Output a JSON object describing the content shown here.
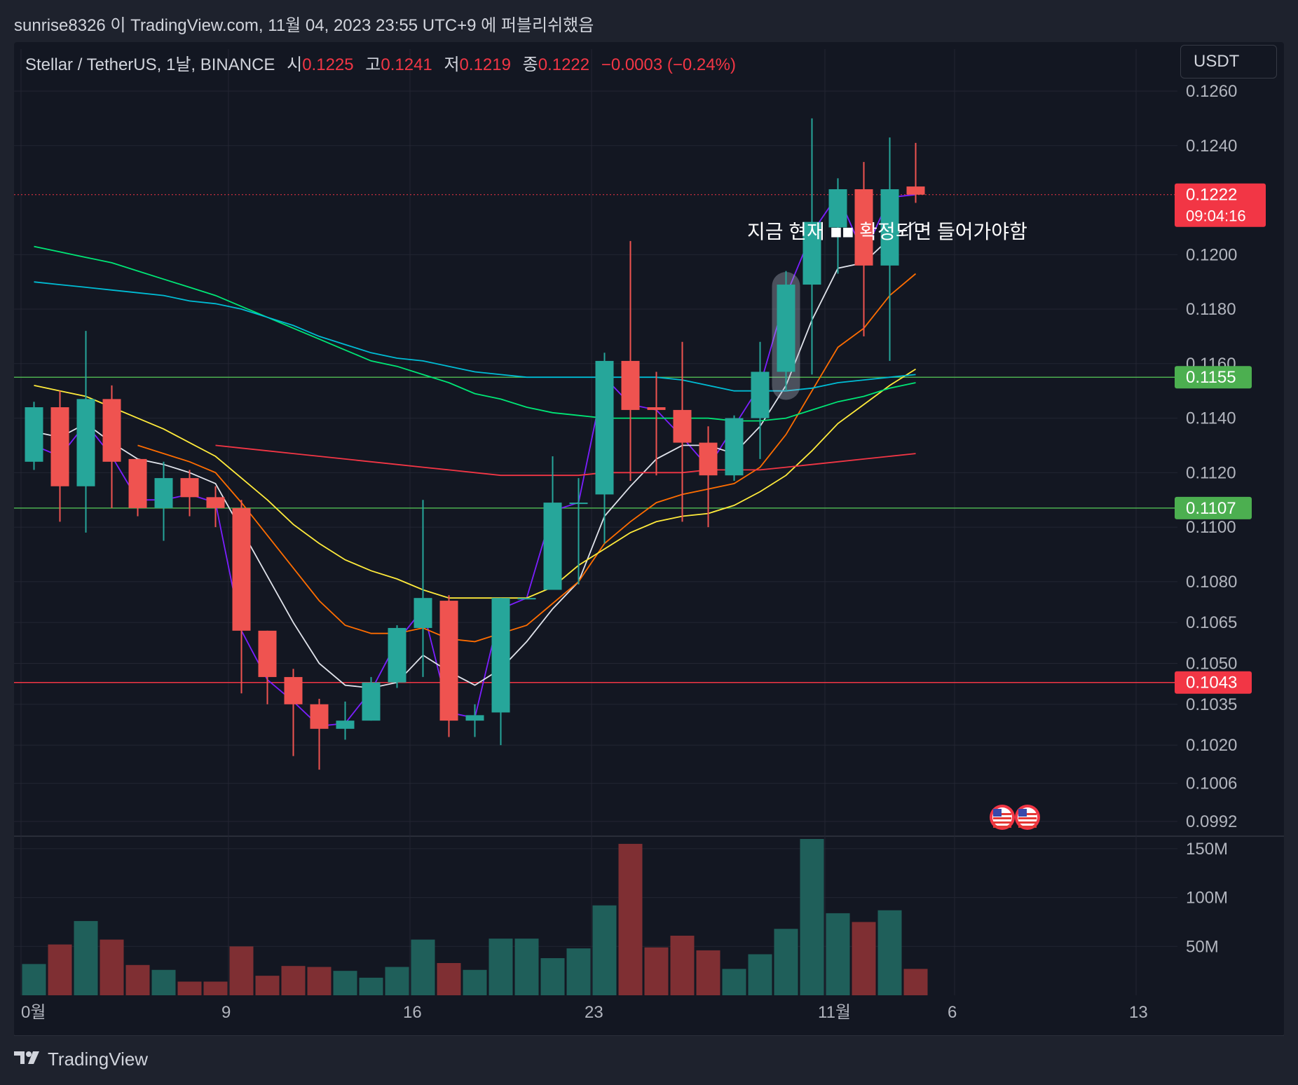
{
  "header": {
    "publisher": "sunrise8326 이 TradingView.com, 11월 04, 2023 23:55 UTC+9 에 퍼블리쉬했음"
  },
  "legend": {
    "symbol": "Stellar / TetherUS, 1날, BINANCE",
    "open_label": "시",
    "open": "0.1225",
    "high_label": "고",
    "high": "0.1241",
    "low_label": "저",
    "low": "0.1219",
    "close_label": "종",
    "close": "0.1222",
    "change": "−0.0003 (−0.24%)"
  },
  "currency_button": "USDT",
  "footer": {
    "brand": "TradingView"
  },
  "colors": {
    "up": "#26a69a",
    "down": "#ef5350",
    "up_volume": "#1f5f5a",
    "down_volume": "#7f2f33",
    "background": "#131722",
    "grid": "#232632"
  },
  "icons": [
    "us-flag-icon",
    "us-flag-icon"
  ],
  "chart_data": {
    "type": "candlestick",
    "interval": "1D",
    "x_tick_labels": [
      "0월",
      "9",
      "16",
      "23",
      "11월",
      "6",
      "13"
    ],
    "y_tick_labels": [
      "0.1260",
      "0.1240",
      "0.1200",
      "0.1180",
      "0.1160",
      "0.1140",
      "0.1120",
      "0.1100",
      "0.1080",
      "0.1065",
      "0.1050",
      "0.1035",
      "0.1020",
      "0.1006",
      "0.0992"
    ],
    "y_range": [
      0.0992,
      0.126
    ],
    "volume_tick_labels": [
      "150M",
      "100M",
      "50M"
    ],
    "volume_range": [
      0,
      165000000
    ],
    "candles": [
      {
        "date": "2023-10-01",
        "open": 0.1124,
        "high": 0.1146,
        "low": 0.1121,
        "close": 0.1144
      },
      {
        "date": "2023-10-02",
        "open": 0.1144,
        "high": 0.115,
        "low": 0.1102,
        "close": 0.1115
      },
      {
        "date": "2023-10-03",
        "open": 0.1115,
        "high": 0.1172,
        "low": 0.1098,
        "close": 0.1147
      },
      {
        "date": "2023-10-04",
        "open": 0.1147,
        "high": 0.1152,
        "low": 0.1107,
        "close": 0.1124
      },
      {
        "date": "2023-10-05",
        "open": 0.1125,
        "high": 0.1125,
        "low": 0.1104,
        "close": 0.1107
      },
      {
        "date": "2023-10-06",
        "open": 0.1107,
        "high": 0.1124,
        "low": 0.1095,
        "close": 0.1118
      },
      {
        "date": "2023-10-07",
        "open": 0.1118,
        "high": 0.1121,
        "low": 0.1104,
        "close": 0.1111
      },
      {
        "date": "2023-10-08",
        "open": 0.1111,
        "high": 0.1115,
        "low": 0.11,
        "close": 0.1107
      },
      {
        "date": "2023-10-09",
        "open": 0.1107,
        "high": 0.111,
        "low": 0.1039,
        "close": 0.1062
      },
      {
        "date": "2023-10-10",
        "open": 0.1062,
        "high": 0.1062,
        "low": 0.1035,
        "close": 0.1045
      },
      {
        "date": "2023-10-11",
        "open": 0.1045,
        "high": 0.1048,
        "low": 0.1016,
        "close": 0.1035
      },
      {
        "date": "2023-10-12",
        "open": 0.1035,
        "high": 0.1037,
        "low": 0.1011,
        "close": 0.1026
      },
      {
        "date": "2023-10-13",
        "open": 0.1026,
        "high": 0.1036,
        "low": 0.1022,
        "close": 0.1029
      },
      {
        "date": "2023-10-14",
        "open": 0.1029,
        "high": 0.1045,
        "low": 0.1029,
        "close": 0.1043
      },
      {
        "date": "2023-10-15",
        "open": 0.1043,
        "high": 0.1064,
        "low": 0.1041,
        "close": 0.1063
      },
      {
        "date": "2023-10-16",
        "open": 0.1063,
        "high": 0.111,
        "low": 0.1045,
        "close": 0.1074
      },
      {
        "date": "2023-10-17",
        "open": 0.1073,
        "high": 0.1075,
        "low": 0.1023,
        "close": 0.1029
      },
      {
        "date": "2023-10-18",
        "open": 0.1029,
        "high": 0.1035,
        "low": 0.1023,
        "close": 0.1031
      },
      {
        "date": "2023-10-19",
        "open": 0.1032,
        "high": 0.1074,
        "low": 0.102,
        "close": 0.1074
      },
      {
        "date": "2023-10-20",
        "open": 0.1074,
        "high": 0.1074,
        "low": 0.1074,
        "close": 0.1074
      },
      {
        "date": "2023-10-21",
        "open": 0.1077,
        "high": 0.1126,
        "low": 0.1077,
        "close": 0.1109
      },
      {
        "date": "2023-10-22",
        "open": 0.1109,
        "high": 0.1118,
        "low": 0.1079,
        "close": 0.1109
      },
      {
        "date": "2023-10-23",
        "open": 0.1112,
        "high": 0.1164,
        "low": 0.1094,
        "close": 0.1161
      },
      {
        "date": "2023-10-24",
        "open": 0.1161,
        "high": 0.1205,
        "low": 0.1117,
        "close": 0.1143
      },
      {
        "date": "2023-10-25",
        "open": 0.1144,
        "high": 0.1157,
        "low": 0.1119,
        "close": 0.1143
      },
      {
        "date": "2023-10-26",
        "open": 0.1143,
        "high": 0.1168,
        "low": 0.1102,
        "close": 0.1131
      },
      {
        "date": "2023-10-27",
        "open": 0.1131,
        "high": 0.1137,
        "low": 0.11,
        "close": 0.1119
      },
      {
        "date": "2023-10-28",
        "open": 0.1119,
        "high": 0.1141,
        "low": 0.1117,
        "close": 0.114
      },
      {
        "date": "2023-10-29",
        "open": 0.114,
        "high": 0.1168,
        "low": 0.1125,
        "close": 0.1157
      },
      {
        "date": "2023-10-30",
        "open": 0.1157,
        "high": 0.1194,
        "low": 0.115,
        "close": 0.1189
      },
      {
        "date": "2023-10-31",
        "open": 0.1189,
        "high": 0.125,
        "low": 0.1156,
        "close": 0.1212
      },
      {
        "date": "2023-11-01",
        "open": 0.121,
        "high": 0.1228,
        "low": 0.1193,
        "close": 0.1224
      },
      {
        "date": "2023-11-02",
        "open": 0.1224,
        "high": 0.1234,
        "low": 0.117,
        "close": 0.1196
      },
      {
        "date": "2023-11-03",
        "open": 0.1196,
        "high": 0.1243,
        "low": 0.1161,
        "close": 0.1224
      },
      {
        "date": "2023-11-04",
        "open": 0.1225,
        "high": 0.1241,
        "low": 0.1219,
        "close": 0.1222
      }
    ],
    "volume": [
      32000000,
      52000000,
      76000000,
      57000000,
      31000000,
      26000000,
      14000000,
      14000000,
      50000000,
      20000000,
      30000000,
      29000000,
      25000000,
      18000000,
      29000000,
      57000000,
      33000000,
      26000000,
      58000000,
      58000000,
      38000000,
      48000000,
      92000000,
      155000000,
      49000000,
      61000000,
      46000000,
      27000000,
      42000000,
      68000000,
      160000000,
      84000000,
      75000000,
      87000000,
      27000000
    ],
    "moving_averages": [
      {
        "color": "#7b1fff",
        "values": [
          0.113,
          0.1126,
          0.1138,
          0.1126,
          0.111,
          0.111,
          0.1112,
          0.1109,
          0.1062,
          0.1044,
          0.1036,
          0.1027,
          0.1028,
          0.104,
          0.1058,
          0.107,
          0.1032,
          0.103,
          0.107,
          0.1074,
          0.1106,
          0.1109,
          0.1155,
          0.1145,
          0.1143,
          0.1133,
          0.1122,
          0.1137,
          0.1152,
          0.1185,
          0.1208,
          0.1222,
          0.12,
          0.1221,
          0.1222
        ]
      },
      {
        "color": "#e0e3eb",
        "values": [
          0.1135,
          0.1133,
          0.1138,
          0.1131,
          0.1125,
          0.1123,
          0.112,
          0.1116,
          0.1099,
          0.1082,
          0.1065,
          0.105,
          0.1042,
          0.1041,
          0.1043,
          0.1053,
          0.1047,
          0.1042,
          0.1048,
          0.1058,
          0.107,
          0.108,
          0.1104,
          0.1115,
          0.1125,
          0.113,
          0.113,
          0.1127,
          0.1137,
          0.1152,
          0.1176,
          0.1195,
          0.1197,
          0.1206,
          0.1212
        ]
      },
      {
        "color": "#ff6d00",
        "values": [
          null,
          null,
          null,
          null,
          0.113,
          0.1127,
          0.1124,
          0.112,
          0.1109,
          0.1097,
          0.1085,
          0.1073,
          0.1064,
          0.1061,
          0.1061,
          0.1063,
          0.1059,
          0.1058,
          0.1061,
          0.1064,
          0.1072,
          0.108,
          0.1094,
          0.1102,
          0.1109,
          0.1112,
          0.1114,
          0.1116,
          0.1122,
          0.1134,
          0.115,
          0.1166,
          0.1173,
          0.1185,
          0.1193
        ]
      },
      {
        "color": "#ffeb3b",
        "values": [
          0.1152,
          0.115,
          0.1148,
          0.1144,
          0.114,
          0.1136,
          0.1131,
          0.1126,
          0.1118,
          0.111,
          0.1101,
          0.1094,
          0.1088,
          0.1084,
          0.1081,
          0.1077,
          0.1074,
          0.1074,
          0.1074,
          0.1074,
          0.1078,
          0.1086,
          0.1092,
          0.1098,
          0.1102,
          0.1104,
          0.1105,
          0.1108,
          0.1113,
          0.1119,
          0.1128,
          0.1138,
          0.1145,
          0.1152,
          0.1158
        ]
      },
      {
        "color": "#f23645",
        "values": [
          null,
          null,
          null,
          null,
          null,
          null,
          null,
          0.113,
          0.1129,
          0.1128,
          0.1127,
          0.1126,
          0.1125,
          0.1124,
          0.1123,
          0.1122,
          0.1121,
          0.112,
          0.1119,
          0.1119,
          0.1119,
          0.1119,
          0.112,
          0.112,
          0.112,
          0.112,
          0.1121,
          0.1121,
          0.1121,
          0.1122,
          0.1123,
          0.1124,
          0.1125,
          0.1126,
          0.1127
        ]
      },
      {
        "color": "#00e676",
        "values": [
          0.1203,
          0.1201,
          0.1199,
          0.1197,
          0.1194,
          0.1191,
          0.1188,
          0.1185,
          0.1181,
          0.1177,
          0.1173,
          0.1169,
          0.1165,
          0.1161,
          0.1159,
          0.1156,
          0.1153,
          0.1149,
          0.1147,
          0.1144,
          0.1142,
          0.1141,
          0.114,
          0.114,
          0.114,
          0.114,
          0.114,
          0.1139,
          0.1139,
          0.114,
          0.1143,
          0.1146,
          0.1148,
          0.1151,
          0.1153
        ]
      },
      {
        "color": "#00bcd4",
        "values": [
          0.119,
          0.1189,
          0.1188,
          0.1187,
          0.1186,
          0.1185,
          0.1183,
          0.1182,
          0.118,
          0.1177,
          0.1174,
          0.117,
          0.1167,
          0.1164,
          0.1162,
          0.1161,
          0.1159,
          0.1157,
          0.1156,
          0.1155,
          0.1155,
          0.1155,
          0.1155,
          0.1155,
          0.1155,
          0.1154,
          0.1152,
          0.115,
          0.115,
          0.115,
          0.1151,
          0.1153,
          0.1154,
          0.1155,
          0.1156
        ]
      }
    ],
    "horizontal_lines": [
      {
        "price": 0.1155,
        "label": "0.1155",
        "color": "#4caf50"
      },
      {
        "price": 0.1107,
        "label": "0.1107",
        "color": "#4caf50"
      },
      {
        "price": 0.1043,
        "label": "0.1043",
        "color": "#f23645"
      }
    ],
    "last_price": {
      "price": 0.1222,
      "label": "0.1222",
      "countdown": "09:04:16",
      "color": "#f23645"
    },
    "annotation": {
      "text": "지금 현재 ■■ 확정되면 들어가야함",
      "price": 0.1206,
      "highlight_candle_index": 29
    }
  }
}
